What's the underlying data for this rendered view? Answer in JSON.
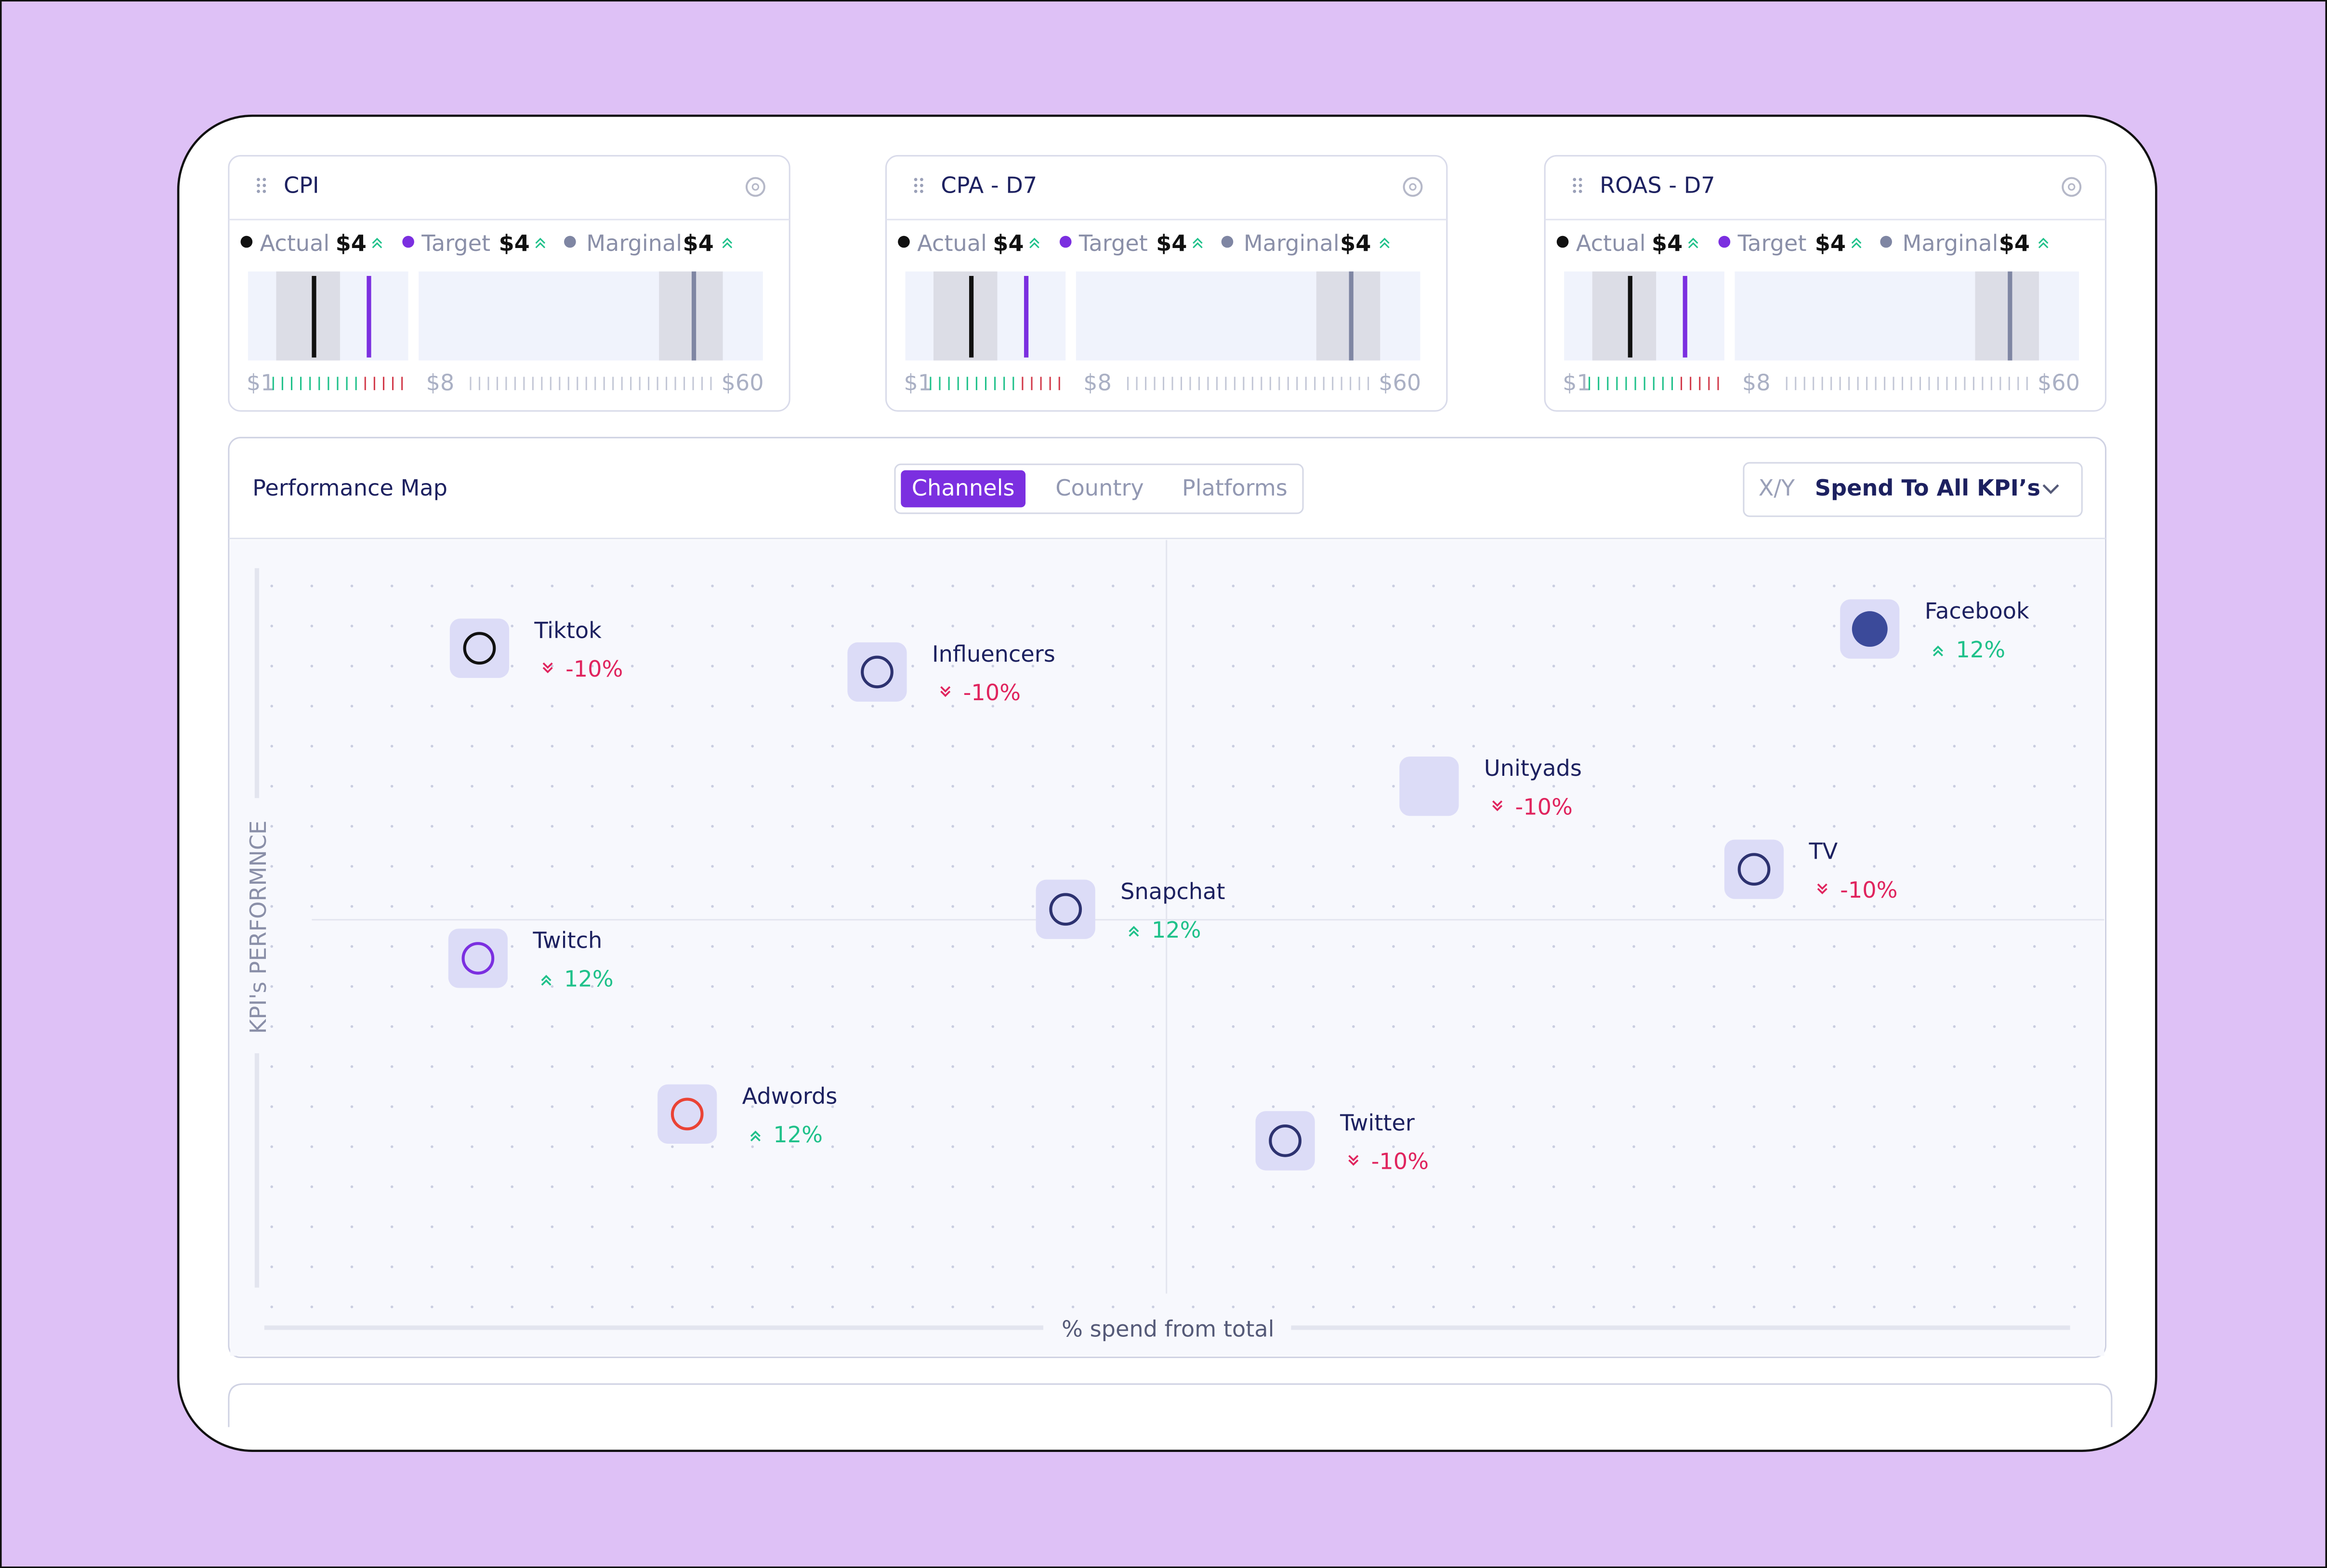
{
  "kpi_cards": [
    {
      "title": "CPI",
      "legend": [
        {
          "label": "Actual",
          "value": "$4"
        },
        {
          "label": "Target",
          "value": "$4"
        },
        {
          "label": "Marginal",
          "value": "$4"
        }
      ],
      "scale": [
        "$1",
        "$8",
        "$60"
      ]
    },
    {
      "title": "CPA - D7",
      "legend": [
        {
          "label": "Actual",
          "value": "$4"
        },
        {
          "label": "Target",
          "value": "$4"
        },
        {
          "label": "Marginal",
          "value": "$4"
        }
      ],
      "scale": [
        "$1",
        "$8",
        "$60"
      ]
    },
    {
      "title": "ROAS - D7",
      "legend": [
        {
          "label": "Actual",
          "value": "$4"
        },
        {
          "label": "Target",
          "value": "$4"
        },
        {
          "label": "Marginal",
          "value": "$4"
        }
      ],
      "scale": [
        "$1",
        "$8",
        "$60"
      ]
    }
  ],
  "performance_map": {
    "title": "Performance Map",
    "tabs": [
      "Channels",
      "Country",
      "Platforms"
    ],
    "axis_selector": {
      "prefix": "X/Y",
      "value": "Spend To All KPI’s"
    },
    "y_axis_label": "KPI's PERFORMNCE",
    "x_axis_label": "% spend from total",
    "channels": [
      {
        "name": "Tiktok",
        "change": "-10%"
      },
      {
        "name": "Influencers",
        "change": "-10%"
      },
      {
        "name": "Facebook",
        "change": "12%"
      },
      {
        "name": "Unityads",
        "change": "-10%"
      },
      {
        "name": "TV",
        "change": "-10%"
      },
      {
        "name": "Snapchat",
        "change": "12%"
      },
      {
        "name": "Twitch",
        "change": "12%"
      },
      {
        "name": "Adwords",
        "change": "12%"
      },
      {
        "name": "Twitter",
        "change": "-10%"
      }
    ]
  }
}
